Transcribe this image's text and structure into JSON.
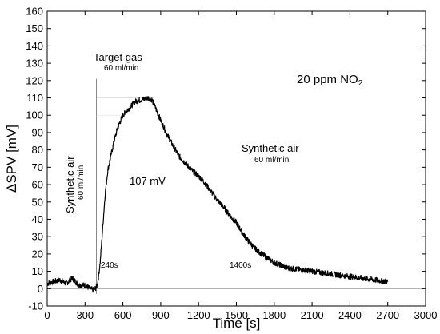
{
  "chart_data": {
    "type": "line",
    "title": "",
    "xlabel": "Time [s]",
    "ylabel": "ΔSPV [mV]",
    "xlim": [
      0,
      3000
    ],
    "ylim": [
      -10,
      160
    ],
    "xticks": [
      0,
      300,
      600,
      900,
      1200,
      1500,
      1800,
      2100,
      2400,
      2700,
      3000
    ],
    "yticks": [
      -10,
      0,
      10,
      20,
      30,
      40,
      50,
      60,
      70,
      80,
      90,
      100,
      110,
      120,
      130,
      140,
      150,
      160
    ],
    "grid": false,
    "series": [
      {
        "x": [
          0,
          50,
          100,
          150,
          200,
          250,
          300,
          340,
          370,
          390,
          400,
          420,
          440,
          460,
          480,
          500,
          530,
          560,
          600,
          650,
          700,
          750,
          800,
          830,
          860,
          900,
          950,
          1000,
          1050,
          1100,
          1150,
          1200,
          1250,
          1300,
          1350,
          1400,
          1450,
          1500,
          1550,
          1600,
          1650,
          1700,
          1800,
          1900,
          2000,
          2100,
          2200,
          2300,
          2400,
          2500,
          2600,
          2700
        ],
        "y": [
          3,
          4,
          5,
          3,
          6,
          2,
          2,
          0,
          -1,
          1,
          3,
          15,
          35,
          55,
          68,
          75,
          85,
          93,
          100,
          104,
          108,
          109,
          110,
          109,
          104,
          97,
          89,
          82,
          76,
          72,
          68,
          65,
          61,
          56,
          51,
          47,
          42,
          38,
          32,
          27,
          23,
          20,
          15,
          12,
          11,
          10,
          9,
          8,
          7,
          6,
          5,
          4
        ]
      }
    ],
    "reference_lines": {
      "vertical_x": 390,
      "horizontal_y": [
        0,
        110,
        100
      ]
    },
    "annotations": {
      "target_gas": "Target gas",
      "target_gas_flow": "60 ml/min",
      "gas_conc": "20 ppm NO",
      "gas_conc_sub": "2",
      "synthetic_air_right": "Synthetic air",
      "synthetic_air_right_flow": "60 ml/min",
      "synthetic_air_left": "Synthetic air",
      "synthetic_air_left_flow": "60 ml/min",
      "amplitude": "107 mV",
      "time_240": "240s",
      "time_1400": "1400s"
    }
  }
}
